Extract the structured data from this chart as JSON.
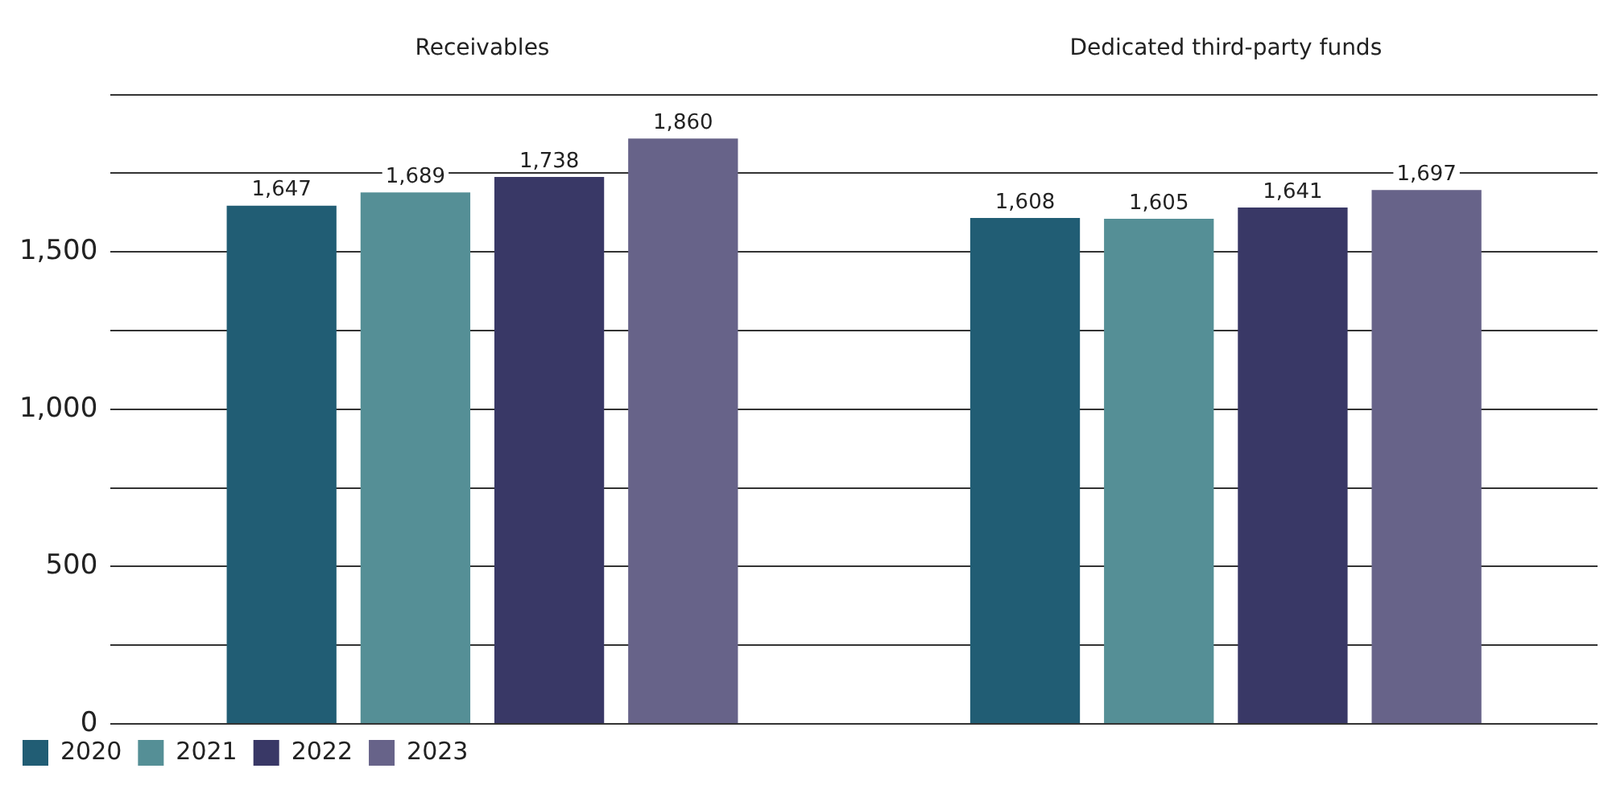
{
  "chart_data": {
    "type": "bar",
    "categories": [
      "Receivables",
      "Dedicated third-party funds"
    ],
    "series": [
      {
        "name": "2020",
        "color": "#215d74",
        "values": [
          1647,
          1608
        ],
        "value_labels": [
          "1,647",
          "1,608"
        ]
      },
      {
        "name": "2021",
        "color": "#558f96",
        "values": [
          1689,
          1605
        ],
        "value_labels": [
          "1,689",
          "1,605"
        ]
      },
      {
        "name": "2022",
        "color": "#393866",
        "values": [
          1738,
          1641
        ],
        "value_labels": [
          "1,738",
          "1,641"
        ]
      },
      {
        "name": "2023",
        "color": "#676389",
        "values": [
          1860,
          1697
        ],
        "value_labels": [
          "1,860",
          "1,697"
        ]
      }
    ],
    "ylim": [
      0,
      2000
    ],
    "yticks": [
      0,
      {
        "value": 250,
        "label": null
      },
      500,
      {
        "value": 750,
        "label": null
      },
      {
        "value": 1000,
        "label": "1,000"
      },
      {
        "value": 1250,
        "label": null
      },
      {
        "value": 1500,
        "label": "1,500"
      },
      {
        "value": 1750,
        "label": null
      },
      {
        "value": 2000,
        "label": null
      }
    ],
    "grid": "y",
    "legend": "bottom left"
  }
}
